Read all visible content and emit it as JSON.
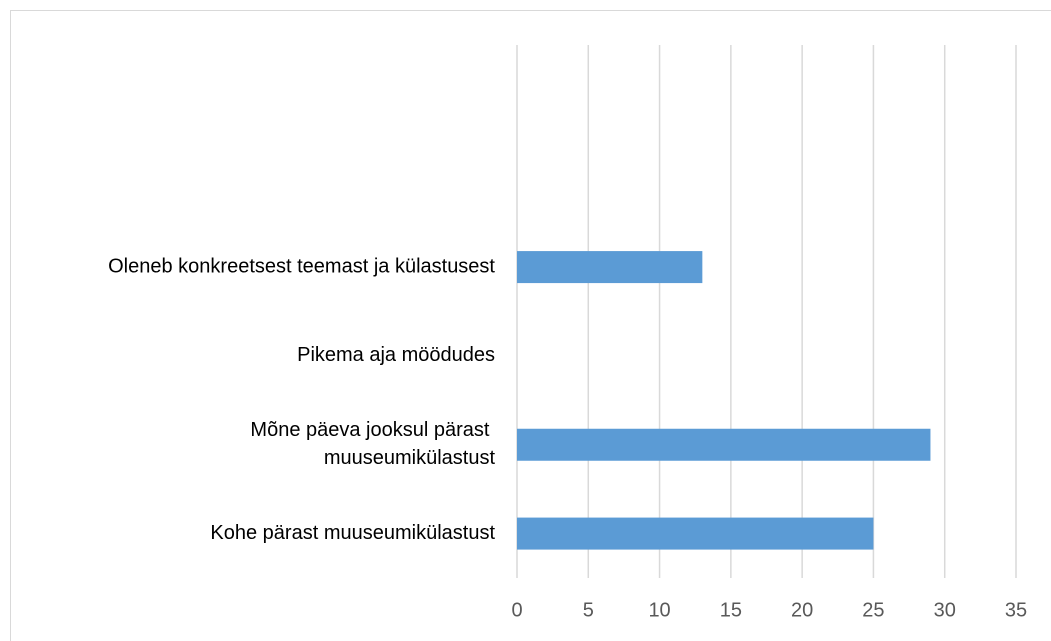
{
  "chart_data": {
    "type": "barh",
    "categories": [
      "Kohe pärast muuseumikülastust",
      "Mõne päeva jooksul pärast muuseumikülastust",
      "Pikema aja möödudes",
      "Oleneb konkreetsest teemast ja külastusest",
      null,
      null
    ],
    "values": [
      25,
      29,
      0,
      13,
      null,
      null
    ],
    "color": "#5b9bd5",
    "xlim": [
      0,
      35
    ],
    "xticks": [
      0,
      5,
      10,
      15,
      20,
      25,
      30,
      35
    ],
    "grid": true
  }
}
